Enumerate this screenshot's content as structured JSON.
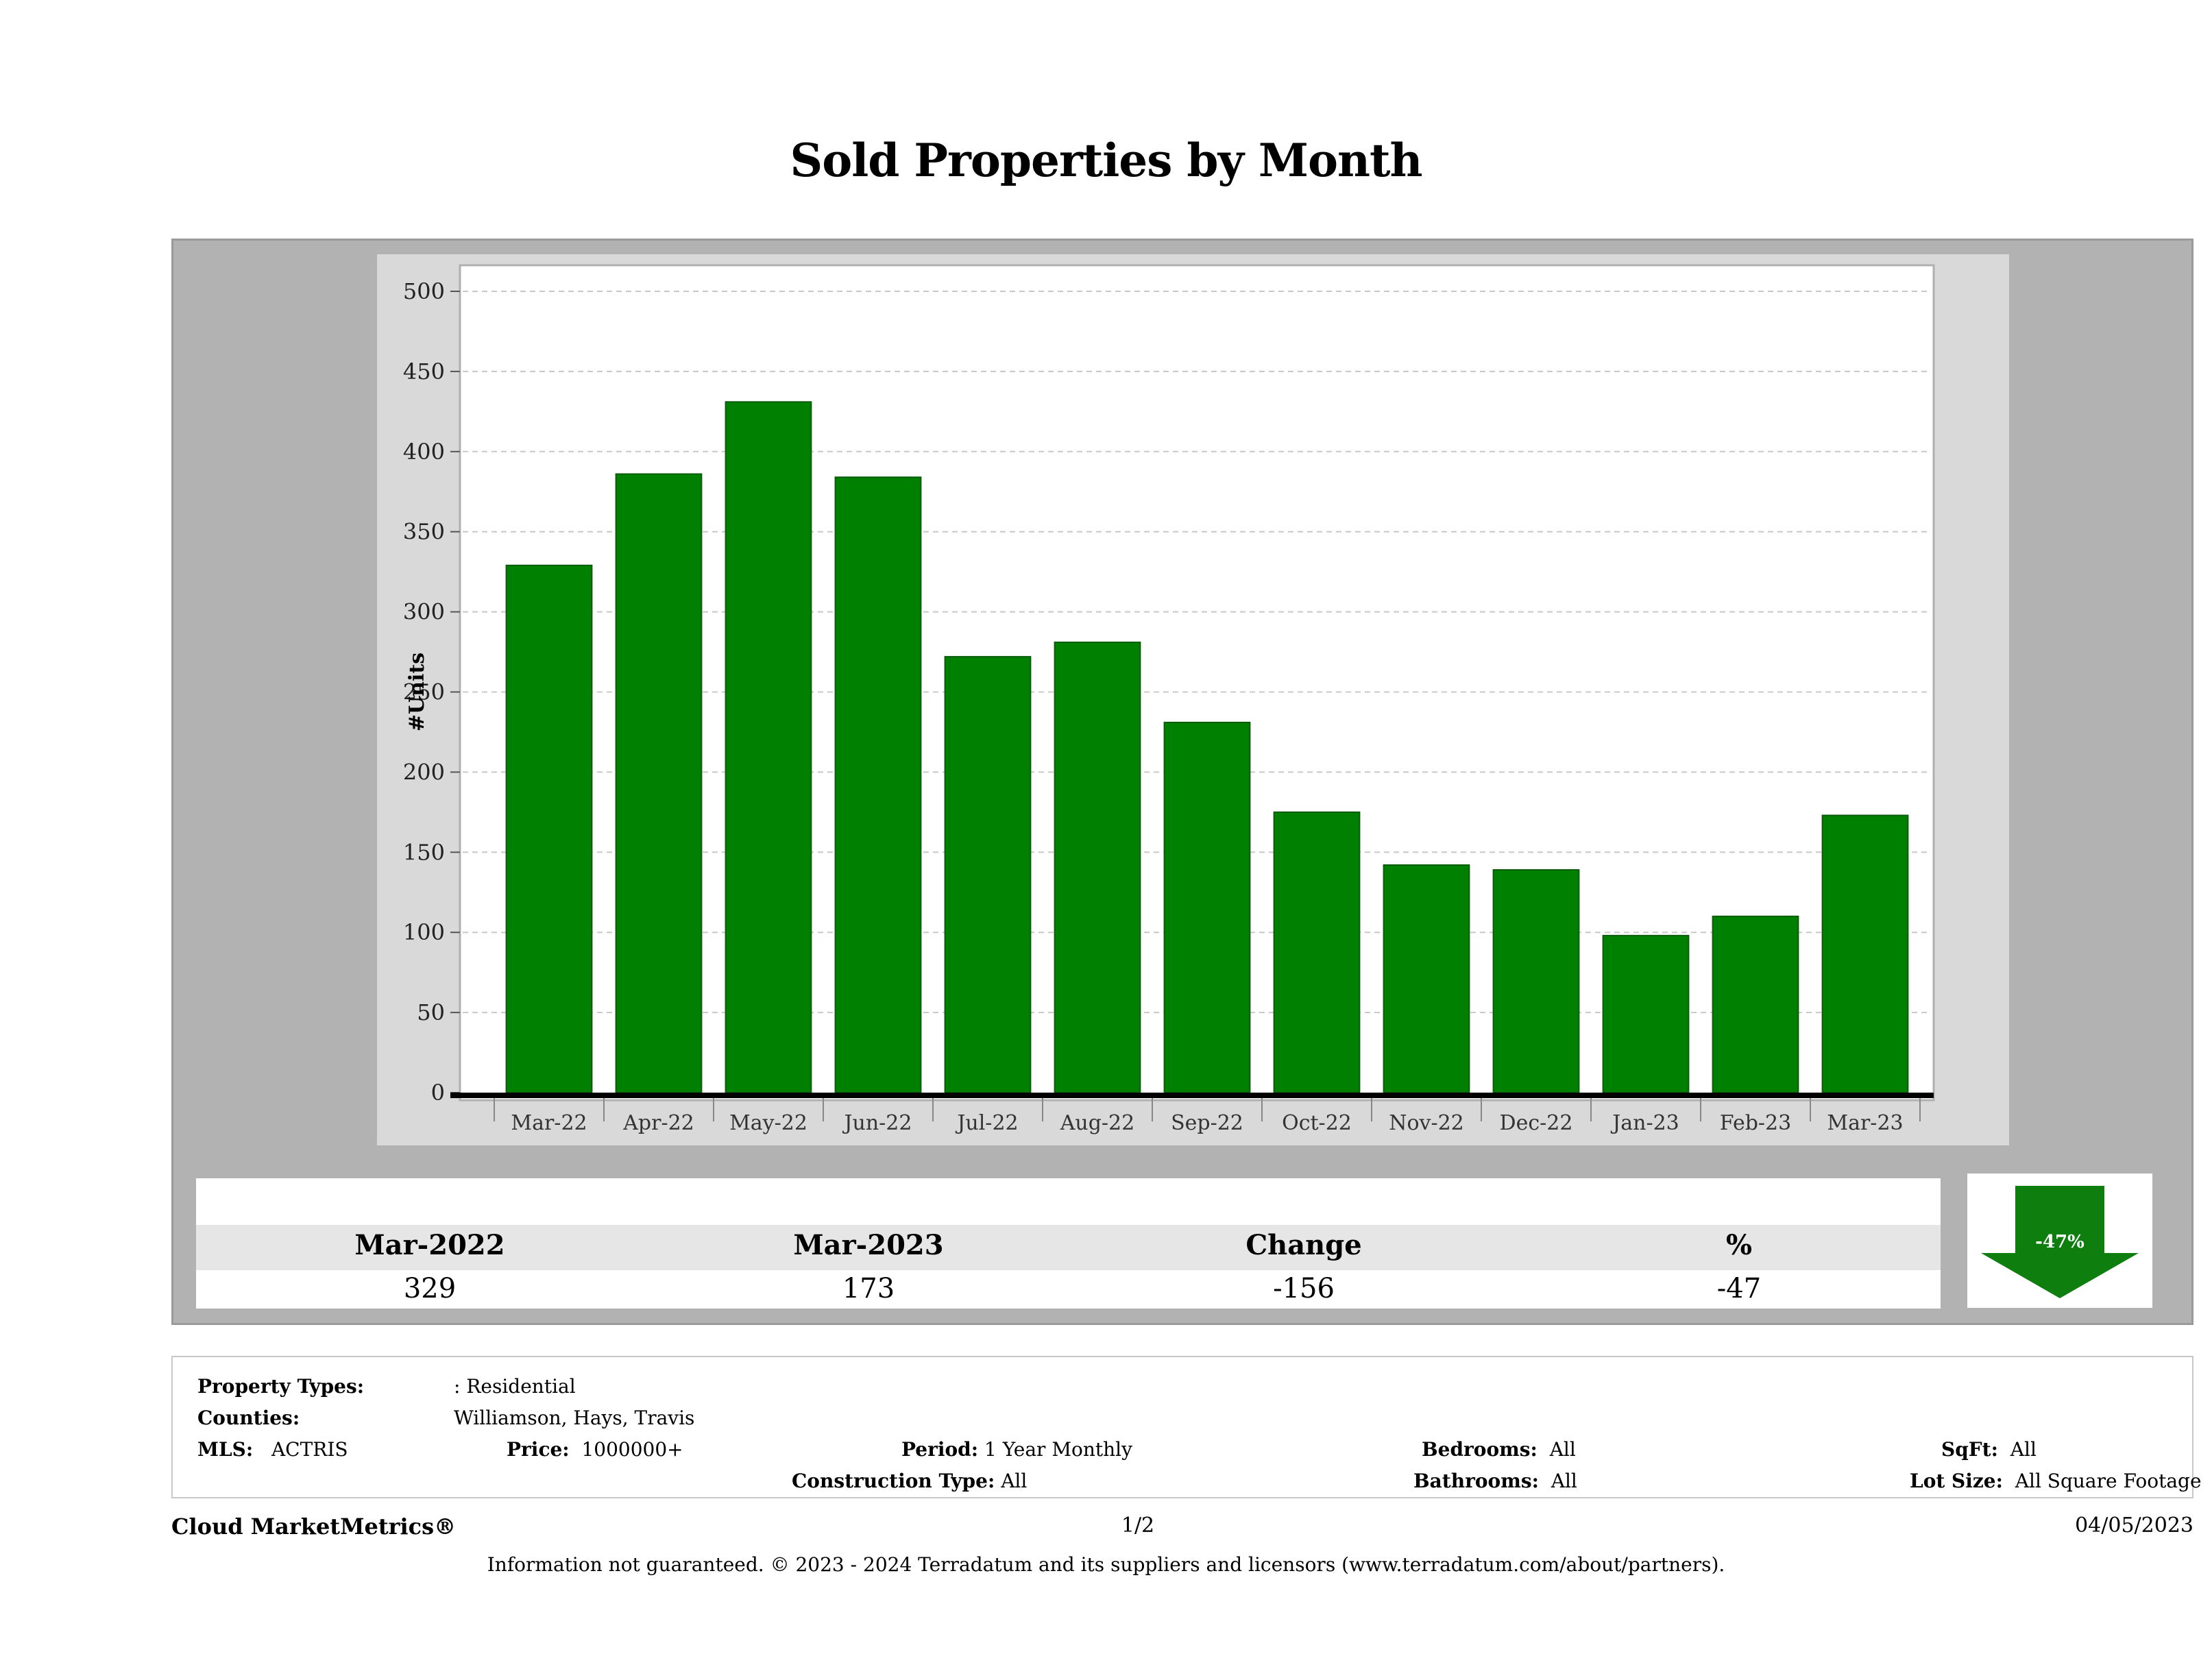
{
  "page": {
    "title": "Sold Properties by Month",
    "footer_brand": "Cloud MarketMetrics®",
    "page_number": "1/2",
    "date": "04/05/2023",
    "disclaimer": "Information not guaranteed. © 2023 - 2024 Terradatum and its suppliers and licensors (www.terradatum.com/about/partners)."
  },
  "chart_data": {
    "type": "bar",
    "title": "Sold Properties by Month",
    "xlabel": "",
    "ylabel": "#Units",
    "ylim": [
      0,
      500
    ],
    "yticks": [
      0,
      50,
      100,
      150,
      200,
      250,
      300,
      350,
      400,
      450,
      500
    ],
    "categories": [
      "Mar-22",
      "Apr-22",
      "May-22",
      "Jun-22",
      "Jul-22",
      "Aug-22",
      "Sep-22",
      "Oct-22",
      "Nov-22",
      "Dec-22",
      "Jan-23",
      "Feb-23",
      "Mar-23"
    ],
    "values": [
      329,
      386,
      431,
      384,
      272,
      281,
      231,
      175,
      142,
      139,
      98,
      110,
      173
    ],
    "bar_color": "#008000",
    "grid": true
  },
  "summary": {
    "headers": [
      "Mar-2022",
      "Mar-2023",
      "Change",
      "%"
    ],
    "values": [
      "329",
      "173",
      "-156",
      "-47"
    ],
    "badge_text": "-47%",
    "badge_direction": "down-arrow-icon",
    "badge_color": "#0e7e0e"
  },
  "filters": {
    "property_types_label": "Property Types:",
    "property_types_value": ": Residential",
    "counties_label": "Counties:",
    "counties_value": "Williamson, Hays, Travis",
    "mls_label": "MLS:",
    "mls_value": "ACTRIS",
    "price_label": "Price:",
    "price_value": "1000000+",
    "period_label": "Period:",
    "period_value": "1 Year Monthly",
    "construction_label": "Construction Type:",
    "construction_value": "All",
    "bedrooms_label": "Bedrooms:",
    "bedrooms_value": "All",
    "bathrooms_label": "Bathrooms:",
    "bathrooms_value": "All",
    "sqft_label": "SqFt:",
    "sqft_value": "All",
    "lotsize_label": "Lot Size:",
    "lotsize_value": "All Square Footage"
  }
}
